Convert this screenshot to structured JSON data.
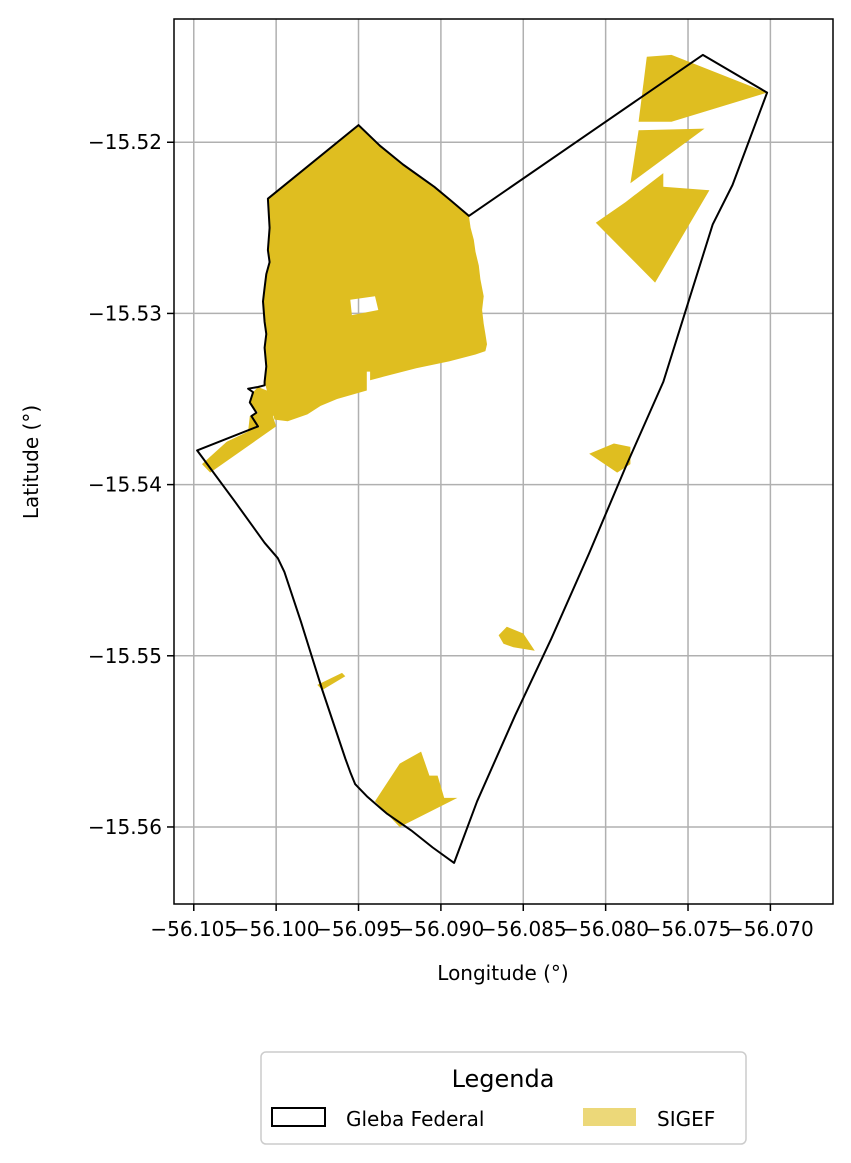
{
  "chart_data": {
    "type": "map",
    "xlabel": "Longitude (°)",
    "ylabel": "Latitude (°)",
    "xlim": [
      -56.1062,
      -56.0662
    ],
    "ylim": [
      -15.5645,
      -15.5128
    ],
    "grid": true,
    "x_ticks": [
      {
        "value": -56.105,
        "label": "−56.105"
      },
      {
        "value": -56.1,
        "label": "−56.100"
      },
      {
        "value": -56.095,
        "label": "−56.095"
      },
      {
        "value": -56.09,
        "label": "−56.090"
      },
      {
        "value": -56.085,
        "label": "−56.085"
      },
      {
        "value": -56.08,
        "label": "−56.080"
      },
      {
        "value": -56.075,
        "label": "−56.075"
      },
      {
        "value": -56.07,
        "label": "−56.070"
      }
    ],
    "y_ticks": [
      {
        "value": -15.52,
        "label": "−15.52"
      },
      {
        "value": -15.53,
        "label": "−15.53"
      },
      {
        "value": -15.54,
        "label": "−15.54"
      },
      {
        "value": -15.55,
        "label": "−15.55"
      },
      {
        "value": -15.56,
        "label": "−15.56"
      }
    ],
    "legend": {
      "title": "Legenda",
      "placement": "bottom-center",
      "entries": [
        {
          "name": "Gleba Federal",
          "style": "outline",
          "color": "#000000"
        },
        {
          "name": "SIGEF",
          "style": "fill",
          "color": "#DFBE20"
        }
      ]
    },
    "colors": {
      "sigef": "#DFBE20",
      "gleba_edge": "#000000",
      "grid": "#b0b0b0"
    },
    "gleba_federal": [
      [
        -56.1048,
        -15.538
      ],
      [
        -56.1011,
        -15.5366
      ],
      [
        -56.1015,
        -15.536
      ],
      [
        -56.1012,
        -15.5358
      ],
      [
        -56.1016,
        -15.5352
      ],
      [
        -56.1014,
        -15.5346
      ],
      [
        -56.1017,
        -15.5344
      ],
      [
        -56.1011,
        -15.5343
      ],
      [
        -56.1007,
        -15.5342
      ],
      [
        -56.1007,
        -15.534
      ],
      [
        -56.1006,
        -15.5331
      ],
      [
        -56.1007,
        -15.532
      ],
      [
        -56.1006,
        -15.5312
      ],
      [
        -56.1007,
        -15.5305
      ],
      [
        -56.1008,
        -15.5293
      ],
      [
        -56.1007,
        -15.5285
      ],
      [
        -56.1006,
        -15.5277
      ],
      [
        -56.1004,
        -15.527
      ],
      [
        -56.1005,
        -15.5263
      ],
      [
        -56.1004,
        -15.525
      ],
      [
        -56.1005,
        -15.5233
      ],
      [
        -56.095,
        -15.519
      ],
      [
        -56.0937,
        -15.5202
      ],
      [
        -56.0923,
        -15.5213
      ],
      [
        -56.0904,
        -15.5226
      ],
      [
        -56.0894,
        -15.5234
      ],
      [
        -56.0883,
        -15.5243
      ],
      [
        -56.0741,
        -15.5149
      ],
      [
        -56.0702,
        -15.5171
      ],
      [
        -56.0723,
        -15.5225
      ],
      [
        -56.0735,
        -15.5248
      ],
      [
        -56.075,
        -15.5294
      ],
      [
        -56.0765,
        -15.534
      ],
      [
        -56.0788,
        -15.539
      ],
      [
        -56.081,
        -15.544
      ],
      [
        -56.0833,
        -15.549
      ],
      [
        -56.0855,
        -15.5535
      ],
      [
        -56.0878,
        -15.5585
      ],
      [
        -56.0892,
        -15.5621
      ],
      [
        -56.0905,
        -15.5612
      ],
      [
        -56.0918,
        -15.5602
      ],
      [
        -56.0933,
        -15.5592
      ],
      [
        -56.0945,
        -15.5582
      ],
      [
        -56.0952,
        -15.5575
      ],
      [
        -56.0955,
        -15.5568
      ],
      [
        -56.0958,
        -15.556
      ],
      [
        -56.0972,
        -15.552
      ],
      [
        -56.0985,
        -15.548
      ],
      [
        -56.0995,
        -15.5451
      ],
      [
        -56.0999,
        -15.5443
      ],
      [
        -56.1007,
        -15.5434
      ],
      [
        -56.1025,
        -15.541
      ]
    ],
    "sigef_parcels": [
      {
        "polygon": [
          [
            -56.1005,
            -15.5233
          ],
          [
            -56.095,
            -15.519
          ],
          [
            -56.0937,
            -15.5202
          ],
          [
            -56.0923,
            -15.5213
          ],
          [
            -56.0904,
            -15.5226
          ],
          [
            -56.0894,
            -15.5234
          ],
          [
            -56.0883,
            -15.5243
          ],
          [
            -56.0882,
            -15.525
          ],
          [
            -56.088,
            -15.5257
          ],
          [
            -56.0879,
            -15.5264
          ],
          [
            -56.0877,
            -15.5272
          ],
          [
            -56.0876,
            -15.528
          ],
          [
            -56.0874,
            -15.529
          ],
          [
            -56.0875,
            -15.5298
          ],
          [
            -56.0874,
            -15.5306
          ],
          [
            -56.0873,
            -15.5312
          ],
          [
            -56.0872,
            -15.5318
          ],
          [
            -56.0873,
            -15.5322
          ],
          [
            -56.0879,
            -15.5324
          ],
          [
            -56.0895,
            -15.5328
          ],
          [
            -56.0915,
            -15.5332
          ],
          [
            -56.0935,
            -15.5337
          ],
          [
            -56.0943,
            -15.5339
          ],
          [
            -56.0943,
            -15.5334
          ],
          [
            -56.0945,
            -15.5334
          ],
          [
            -56.0945,
            -15.5345
          ],
          [
            -56.0963,
            -15.535
          ],
          [
            -56.0973,
            -15.5354
          ],
          [
            -56.0981,
            -15.5359
          ],
          [
            -56.0993,
            -15.5363
          ],
          [
            -56.1001,
            -15.5362
          ],
          [
            -56.1007,
            -15.534
          ],
          [
            -56.1006,
            -15.5331
          ],
          [
            -56.1007,
            -15.532
          ],
          [
            -56.1006,
            -15.5312
          ],
          [
            -56.1007,
            -15.5305
          ],
          [
            -56.1008,
            -15.5293
          ],
          [
            -56.1007,
            -15.5285
          ],
          [
            -56.1006,
            -15.5277
          ],
          [
            -56.1004,
            -15.527
          ],
          [
            -56.1005,
            -15.5263
          ],
          [
            -56.1004,
            -15.525
          ]
        ],
        "hole": [
          [
            -56.0955,
            -15.5292
          ],
          [
            -56.094,
            -15.529
          ],
          [
            -56.0938,
            -15.5298
          ],
          [
            -56.0954,
            -15.5301
          ]
        ]
      },
      {
        "polygon": [
          [
            -56.1011,
            -15.5343
          ],
          [
            -56.1003,
            -15.5346
          ],
          [
            -56.0998,
            -15.5356
          ],
          [
            -56.1002,
            -15.536
          ],
          [
            -56.1,
            -15.5366
          ],
          [
            -56.104,
            -15.5393
          ],
          [
            -56.1045,
            -15.5388
          ],
          [
            -56.103,
            -15.5375
          ],
          [
            -56.1017,
            -15.5369
          ],
          [
            -56.1016,
            -15.536
          ],
          [
            -56.1011,
            -15.5358
          ],
          [
            -56.1016,
            -15.5352
          ],
          [
            -56.1014,
            -15.5346
          ]
        ]
      },
      {
        "polygon": [
          [
            -56.076,
            -15.5149
          ],
          [
            -56.0702,
            -15.5171
          ],
          [
            -56.076,
            -15.5188
          ],
          [
            -56.078,
            -15.5188
          ],
          [
            -56.0775,
            -15.515
          ]
        ]
      },
      {
        "polygon": [
          [
            -56.078,
            -15.5193
          ],
          [
            -56.074,
            -15.5192
          ],
          [
            -56.0785,
            -15.5224
          ]
        ]
      },
      {
        "polygon": [
          [
            -56.0765,
            -15.5218
          ],
          [
            -56.0788,
            -15.5235
          ],
          [
            -56.0806,
            -15.5247
          ],
          [
            -56.077,
            -15.5282
          ],
          [
            -56.0737,
            -15.5228
          ],
          [
            -56.0765,
            -15.5226
          ]
        ]
      },
      {
        "polygon": [
          [
            -56.081,
            -15.5382
          ],
          [
            -56.0795,
            -15.5376
          ],
          [
            -56.0785,
            -15.5378
          ],
          [
            -56.0785,
            -15.5388
          ],
          [
            -56.0793,
            -15.5393
          ]
        ]
      },
      {
        "polygon": [
          [
            -56.086,
            -15.5483
          ],
          [
            -56.0865,
            -15.5488
          ],
          [
            -56.0862,
            -15.5493
          ],
          [
            -56.0856,
            -15.5495
          ],
          [
            -56.0843,
            -15.5497
          ],
          [
            -56.085,
            -15.5487
          ]
        ]
      },
      {
        "polygon": [
          [
            -56.0975,
            -15.5517
          ],
          [
            -56.096,
            -15.551
          ],
          [
            -56.0958,
            -15.5512
          ],
          [
            -56.0972,
            -15.552
          ]
        ]
      },
      {
        "polygon": [
          [
            -56.089,
            -15.5583
          ],
          [
            -56.0898,
            -15.5583
          ],
          [
            -56.0902,
            -15.557
          ],
          [
            -56.0907,
            -15.557
          ],
          [
            -56.0912,
            -15.5556
          ],
          [
            -56.0925,
            -15.5563
          ],
          [
            -56.094,
            -15.5585
          ],
          [
            -56.0925,
            -15.56
          ]
        ]
      }
    ]
  }
}
